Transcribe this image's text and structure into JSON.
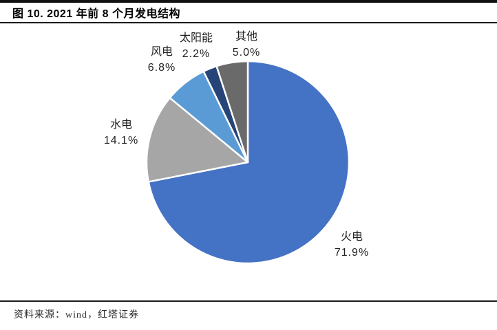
{
  "header": {
    "title": "图 10. 2021 年前 8 个月发电结构"
  },
  "footer": {
    "source": "资料来源：wind，红塔证券"
  },
  "chart_data": {
    "type": "pie",
    "title": "2021 年前 8 个月发电结构",
    "legend_position": "none",
    "labels_position": "outside",
    "start_angle_deg": 0,
    "direction": "clockwise",
    "total": 100.0,
    "slice_border_color": "#ffffff",
    "slices": [
      {
        "name": "火电",
        "value": 71.9,
        "pct_label": "71.9%",
        "color": "#4472C4"
      },
      {
        "name": "水电",
        "value": 14.1,
        "pct_label": "14.1%",
        "color": "#A6A6A6"
      },
      {
        "name": "风电",
        "value": 6.8,
        "pct_label": "6.8%",
        "color": "#5B9BD5"
      },
      {
        "name": "太阳能",
        "value": 2.2,
        "pct_label": "2.2%",
        "color": "#264478"
      },
      {
        "name": "其他",
        "value": 5.0,
        "pct_label": "5.0%",
        "color": "#6A6A6A"
      }
    ]
  }
}
